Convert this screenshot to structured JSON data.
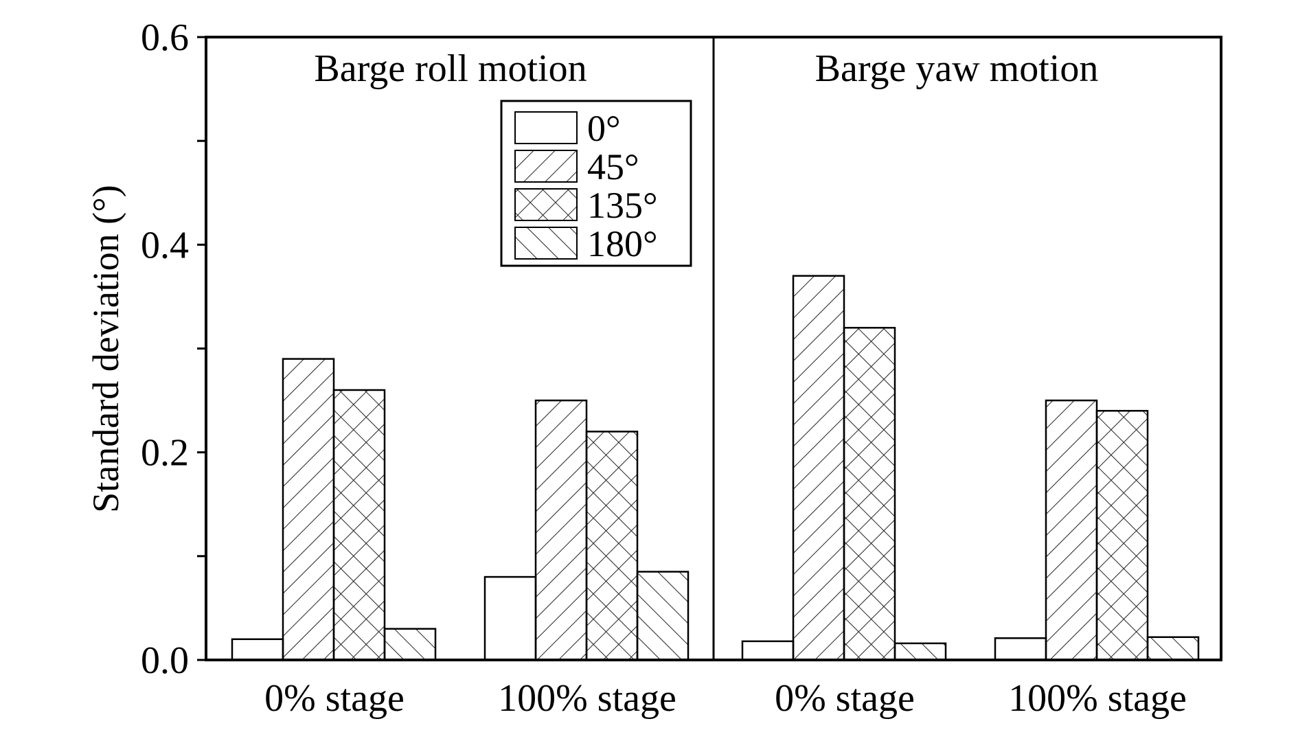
{
  "chart_data": {
    "type": "bar",
    "ylabel": "Standard deviation (°)",
    "ylim": [
      0,
      0.6
    ],
    "yticks": [
      {
        "value": 0.0,
        "label": "0.0"
      },
      {
        "value": 0.1,
        "label": ""
      },
      {
        "value": 0.2,
        "label": "0.2"
      },
      {
        "value": 0.3,
        "label": ""
      },
      {
        "value": 0.4,
        "label": "0.4"
      },
      {
        "value": 0.5,
        "label": ""
      },
      {
        "value": 0.6,
        "label": "0.6"
      }
    ],
    "grid": false,
    "legend_position": "top-center of left panel",
    "series_names": [
      "0°",
      "45°",
      "135°",
      "180°"
    ],
    "series_patterns": [
      "none",
      "diagonal-forward",
      "crosshatch",
      "diagonal-back"
    ],
    "panels": [
      {
        "title": "Barge roll motion",
        "categories": [
          "0% stage",
          "100% stage"
        ],
        "series": [
          {
            "name": "0°",
            "values": [
              0.02,
              0.08
            ]
          },
          {
            "name": "45°",
            "values": [
              0.29,
              0.25
            ]
          },
          {
            "name": "135°",
            "values": [
              0.26,
              0.22
            ]
          },
          {
            "name": "180°",
            "values": [
              0.03,
              0.085
            ]
          }
        ]
      },
      {
        "title": "Barge yaw motion",
        "categories": [
          "0% stage",
          "100% stage"
        ],
        "series": [
          {
            "name": "0°",
            "values": [
              0.018,
              0.021
            ]
          },
          {
            "name": "45°",
            "values": [
              0.37,
              0.25
            ]
          },
          {
            "name": "135°",
            "values": [
              0.32,
              0.24
            ]
          },
          {
            "name": "180°",
            "values": [
              0.016,
              0.022
            ]
          }
        ]
      }
    ]
  }
}
